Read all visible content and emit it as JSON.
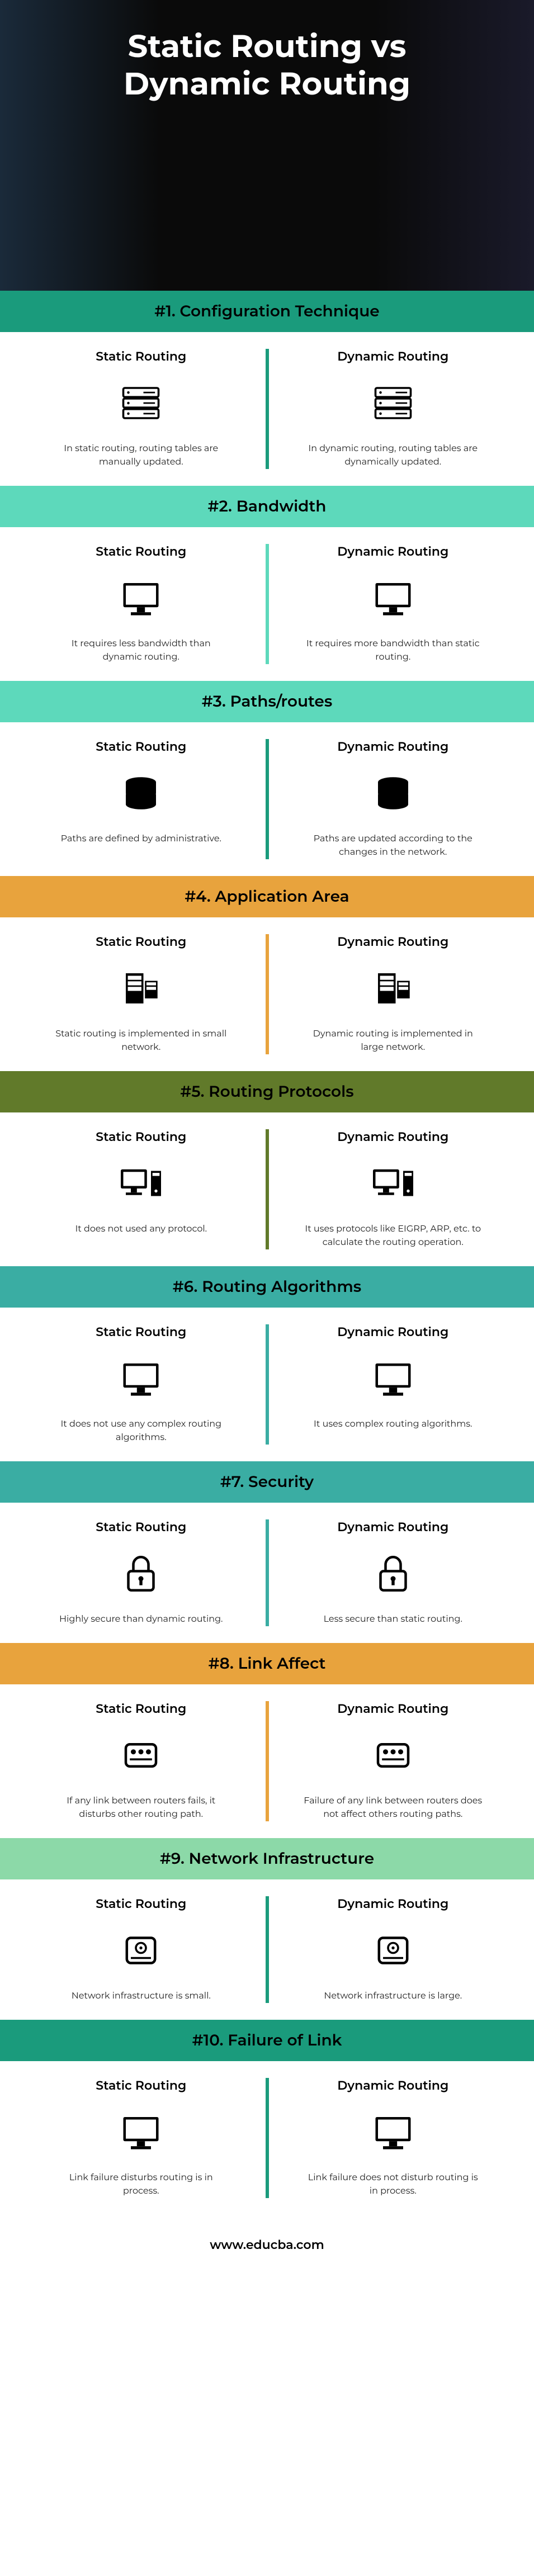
{
  "title": "Static Routing vs Dynamic Routing",
  "footer": "www.educba.com",
  "left_heading": "Static Routing",
  "right_heading": "Dynamic Routing",
  "colors": {
    "teal_dark": "#1a9b7c",
    "teal_light": "#5dd9bb",
    "orange": "#e8a33d",
    "olive": "#617a2a",
    "teal_blue": "#3aada3",
    "green_light": "#8cd9a8"
  },
  "sections": [
    {
      "num": "#1.",
      "title": "Configuration Technique",
      "header_bg": "#1a9b7c",
      "divider_bg": "#1a9b7c",
      "icon": "server",
      "left": "In static routing, routing tables are manually updated.",
      "right": "In dynamic routing, routing tables are dynamically updated."
    },
    {
      "num": "#2.",
      "title": "Bandwidth",
      "header_bg": "#5dd9bb",
      "divider_bg": "#5dd9bb",
      "icon": "monitor",
      "left": "It requires less bandwidth than dynamic routing.",
      "right": "It requires more bandwidth than static routing."
    },
    {
      "num": "#3.",
      "title": "Paths/routes",
      "header_bg": "#5dd9bb",
      "divider_bg": "#1a9b7c",
      "icon": "database",
      "left": "Paths are defined by administrative.",
      "right": "Paths are updated according to the changes in the network."
    },
    {
      "num": "#4.",
      "title": "Application Area",
      "header_bg": "#e8a33d",
      "divider_bg": "#e8a33d",
      "icon": "rack",
      "left": "Static routing is implemented in small network.",
      "right": "Dynamic routing is implemented in large network."
    },
    {
      "num": "#5.",
      "title": "Routing Protocols",
      "header_bg": "#617a2a",
      "divider_bg": "#617a2a",
      "icon": "pc",
      "left": "It does not used any protocol.",
      "right": "It uses protocols like EIGRP, ARP, etc. to calculate the routing operation."
    },
    {
      "num": "#6.",
      "title": "Routing Algorithms",
      "header_bg": "#3aada3",
      "divider_bg": "#3aada3",
      "icon": "monitor",
      "left": "It does not use any complex routing algorithms.",
      "right": "It uses complex routing algorithms."
    },
    {
      "num": "#7.",
      "title": "Security",
      "header_bg": "#3aada3",
      "divider_bg": "#3aada3",
      "icon": "lock",
      "left": "Highly secure than dynamic routing.",
      "right": "Less secure than static routing."
    },
    {
      "num": "#8.",
      "title": "Link Affect",
      "header_bg": "#e8a33d",
      "divider_bg": "#e8a33d",
      "icon": "drive",
      "left": "If any link between routers fails, it disturbs other routing path.",
      "right": "Failure of any link between routers does not affect others routing paths."
    },
    {
      "num": "#9.",
      "title": "Network Infrastructure",
      "header_bg": "#8cd9a8",
      "divider_bg": "#1a9b7c",
      "icon": "disk",
      "left": "Network infrastructure is small.",
      "right": "Network infrastructure is large."
    },
    {
      "num": "#10.",
      "title": "Failure of Link",
      "header_bg": "#1a9b7c",
      "divider_bg": "#1a9b7c",
      "icon": "monitor",
      "left": "Link failure disturbs routing is in process.",
      "right": "Link failure does not disturb routing is in process."
    }
  ]
}
